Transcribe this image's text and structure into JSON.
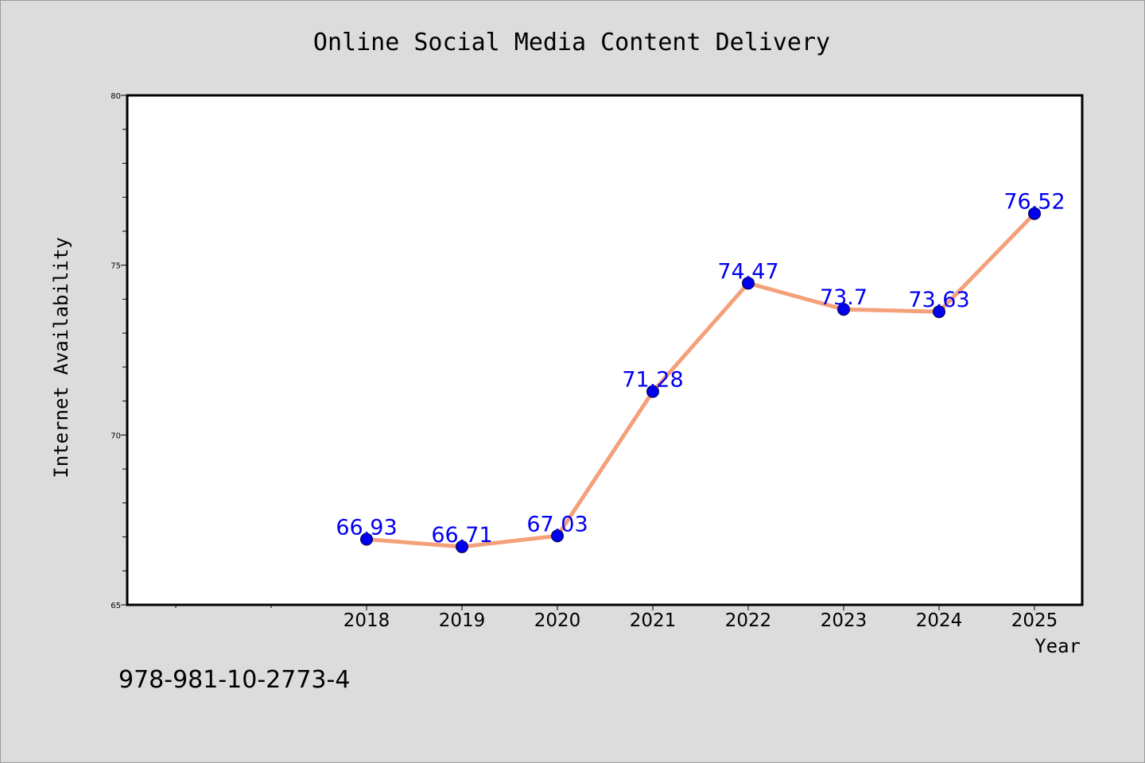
{
  "chart_data": {
    "type": "line",
    "title": "Online Social Media Content Delivery",
    "xlabel": "Year",
    "ylabel": "Internet Availability",
    "x": [
      "2018",
      "2019",
      "2020",
      "2021",
      "2022",
      "2023",
      "2024",
      "2025"
    ],
    "series": [
      {
        "values": [
          66.93,
          66.71,
          67.03,
          71.28,
          74.47,
          73.7,
          73.63,
          76.52
        ],
        "labels": [
          "66.93",
          "66.71",
          "67.03",
          "71.28",
          "74.47",
          "73.7",
          "73.63",
          "76.52"
        ]
      }
    ],
    "ylim": [
      65,
      80
    ],
    "yticks": [
      "65",
      "70",
      "75",
      "80"
    ],
    "grid": false,
    "line_color": "#f4a07a",
    "marker_color": "#0000ee",
    "label_color": "#0000ee",
    "plot_background": "#ffffff",
    "page_background": "#dcdcdc"
  },
  "footer": {
    "isbn": "978-981-10-2773-4"
  }
}
